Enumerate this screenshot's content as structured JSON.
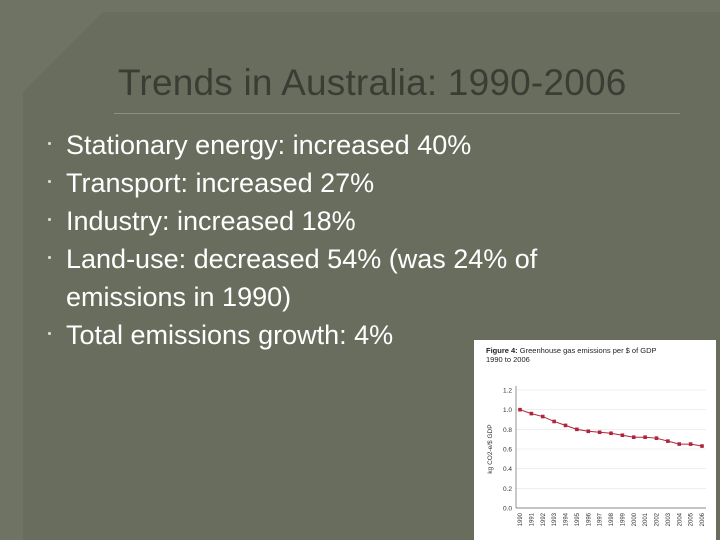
{
  "slide": {
    "title": "Trends in Australia: 1990-2006",
    "bullets": [
      "Stationary energy: increased 40%",
      "Transport: increased 27%",
      "Industry: increased 18%",
      "Land-use: decreased 54% (was 24% of emissions in 1990)",
      "Total emissions growth: 4%"
    ]
  },
  "figure": {
    "caption_label": "Figure 4:",
    "caption_text": "Greenhouse gas emissions per $ of GDP",
    "caption_range": "1990 to 2006"
  },
  "chart_data": {
    "type": "line",
    "ylabel": "kg CO2-e/$ GDP",
    "xlabel": "",
    "ylim": [
      0.0,
      1.2
    ],
    "yticks": [
      0.0,
      0.2,
      0.4,
      0.6,
      0.8,
      1.0,
      1.2
    ],
    "x": [
      "1990",
      "1991",
      "1992",
      "1993",
      "1994",
      "1995",
      "1996",
      "1997",
      "1998",
      "1999",
      "2000",
      "2001",
      "2002",
      "2003",
      "2004",
      "2005",
      "2006"
    ],
    "values": [
      1.0,
      0.96,
      0.93,
      0.88,
      0.84,
      0.8,
      0.78,
      0.77,
      0.76,
      0.74,
      0.72,
      0.72,
      0.71,
      0.68,
      0.65,
      0.65,
      0.63
    ],
    "series_color": "#b0243a"
  }
}
